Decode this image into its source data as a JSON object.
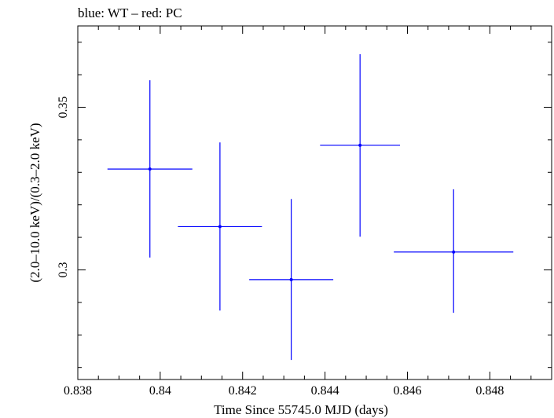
{
  "chart_data": {
    "type": "scatter",
    "title": "blue: WT – red: PC",
    "xlabel": "Time Since 55745.0 MJD (days)",
    "ylabel": "(2.0–10.0 keV)/(0.3–2.0 keV)",
    "xlim": [
      0.838,
      0.8495
    ],
    "ylim": [
      0.2663,
      0.375
    ],
    "x_ticks": [
      0.838,
      0.84,
      0.842,
      0.844,
      0.846,
      0.848
    ],
    "x_tick_labels": [
      "0.838",
      "0.84",
      "0.842",
      "0.844",
      "0.846",
      "0.848"
    ],
    "y_ticks": [
      0.3,
      0.35
    ],
    "y_tick_labels": [
      "0.3",
      "0.35"
    ],
    "grid": false,
    "series": [
      {
        "name": "WT",
        "color": "#0000ff",
        "points": [
          {
            "x": 0.83975,
            "xerr": 0.00103,
            "y": 0.331,
            "y_low": 0.3038,
            "y_high": 0.3583
          },
          {
            "x": 0.84145,
            "xerr": 0.00102,
            "y": 0.3133,
            "y_low": 0.2875,
            "y_high": 0.3392
          },
          {
            "x": 0.84318,
            "xerr": 0.00102,
            "y": 0.297,
            "y_low": 0.2723,
            "y_high": 0.3218
          },
          {
            "x": 0.84485,
            "xerr": 0.00097,
            "y": 0.3383,
            "y_low": 0.3102,
            "y_high": 0.3663
          },
          {
            "x": 0.84712,
            "xerr": 0.00145,
            "y": 0.3055,
            "y_low": 0.2868,
            "y_high": 0.3248
          }
        ]
      }
    ]
  }
}
